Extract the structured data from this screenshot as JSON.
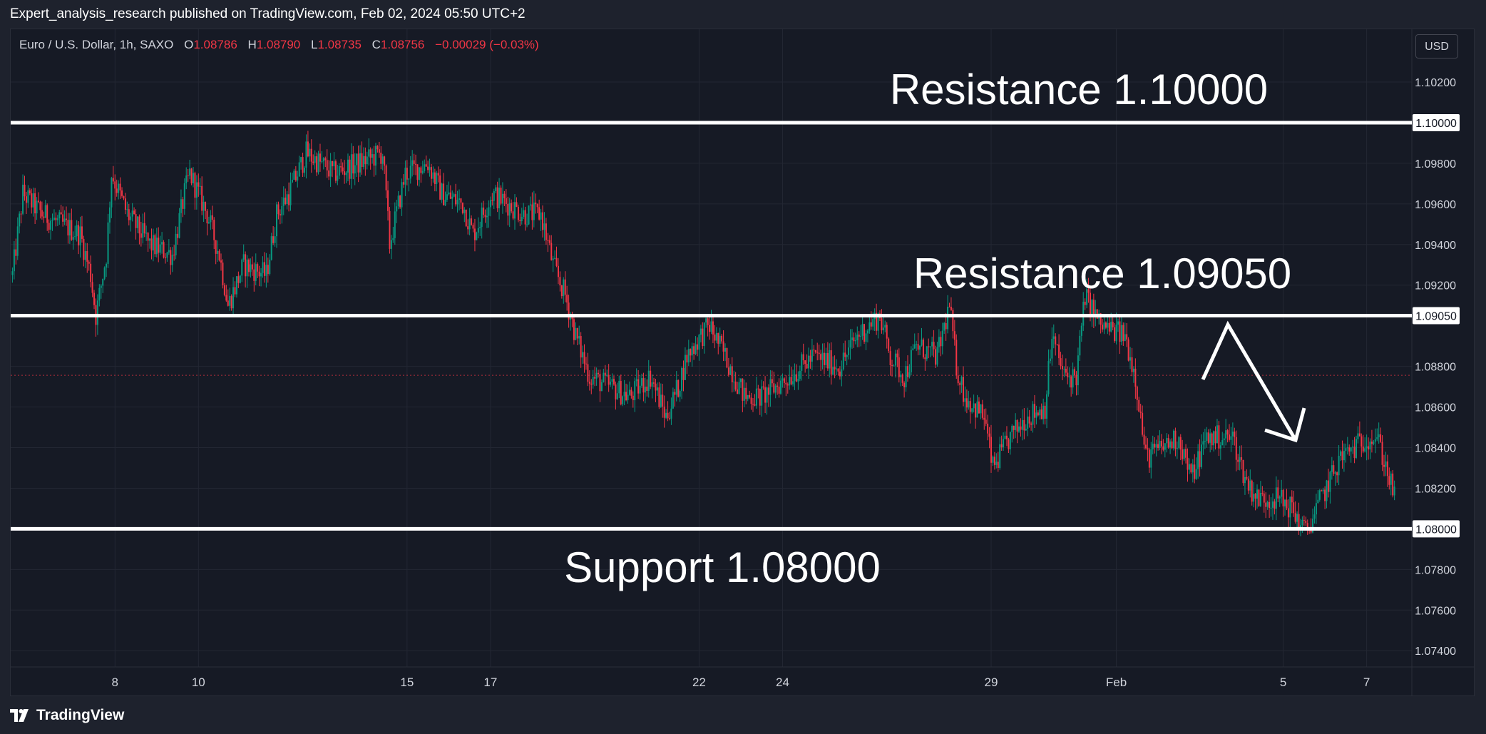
{
  "header": {
    "published_text": "Expert_analysis_research published on TradingView.com, Feb 02, 2024 05:50 UTC+2"
  },
  "legend": {
    "symbol_text": "Euro / U.S. Dollar, 1h, SAXO",
    "open_label": "O",
    "open_value": "1.08786",
    "high_label": "H",
    "high_value": "1.08790",
    "low_label": "L",
    "low_value": "1.08735",
    "close_label": "C",
    "close_value": "1.08756",
    "change_text": "−0.00029 (−0.03%)"
  },
  "currency_button": "USD",
  "footer": {
    "brand": "TradingView",
    "logo_icon": "tradingview-logo-icon"
  },
  "colors": {
    "background": "#161a25",
    "up_candle": "#089981",
    "down_candle": "#f23645",
    "level_line": "#ffffff",
    "axis_text": "#d1d4dc",
    "last_price_line": "#f23645"
  },
  "chart_data": {
    "type": "candlestick",
    "symbol": "EURUSD",
    "timeframe": "1h",
    "ylim": [
      1.0732,
      1.1046
    ],
    "y_ticks": [
      1.102,
      1.098,
      1.096,
      1.094,
      1.092,
      1.088,
      1.086,
      1.084,
      1.082,
      1.078,
      1.076,
      1.074
    ],
    "y_tick_labels": [
      "1.10200",
      "1.09800",
      "1.09600",
      "1.09400",
      "1.09200",
      "1.08800",
      "1.08600",
      "1.08400",
      "1.08200",
      "1.07800",
      "1.07600",
      "1.07400"
    ],
    "x_ticks": [
      {
        "label": "8",
        "date": "2024-01-08"
      },
      {
        "label": "10",
        "date": "2024-01-10"
      },
      {
        "label": "15",
        "date": "2024-01-15"
      },
      {
        "label": "17",
        "date": "2024-01-17"
      },
      {
        "label": "22",
        "date": "2024-01-22"
      },
      {
        "label": "24",
        "date": "2024-01-24"
      },
      {
        "label": "29",
        "date": "2024-01-29"
      },
      {
        "label": "Feb",
        "date": "2024-02-01"
      },
      {
        "label": "5",
        "date": "2024-02-05"
      },
      {
        "label": "7",
        "date": "2024-02-07"
      }
    ],
    "x_range": [
      "2024-01-05 12:00",
      "2024-02-08 02:00"
    ],
    "levels": [
      {
        "label": "Resistance 1.10000",
        "price": 1.1,
        "price_label": "1.10000"
      },
      {
        "label": "Resistance 1.09050",
        "price": 1.0905,
        "price_label": "1.09050"
      },
      {
        "label": "Support 1.08000",
        "price": 1.08,
        "price_label": "1.08000"
      }
    ],
    "last_price": 1.08756,
    "anchors": [
      {
        "date": "2024-01-05 13:00",
        "price": 1.0925
      },
      {
        "date": "2024-01-05 19:00",
        "price": 1.0965
      },
      {
        "date": "2024-01-06 06:00",
        "price": 1.0955
      },
      {
        "date": "2024-01-07 04:00",
        "price": 1.0945
      },
      {
        "date": "2024-01-07 10:00",
        "price": 1.0925
      },
      {
        "date": "2024-01-07 13:00",
        "price": 1.0905
      },
      {
        "date": "2024-01-07 19:00",
        "price": 1.0935
      },
      {
        "date": "2024-01-07 22:00",
        "price": 1.0975
      },
      {
        "date": "2024-01-08 07:00",
        "price": 1.0955
      },
      {
        "date": "2024-01-08 20:00",
        "price": 1.094
      },
      {
        "date": "2024-01-09 09:00",
        "price": 1.0935
      },
      {
        "date": "2024-01-09 16:00",
        "price": 1.0965
      },
      {
        "date": "2024-01-09 19:00",
        "price": 1.0975
      },
      {
        "date": "2024-01-10 05:00",
        "price": 1.0955
      },
      {
        "date": "2024-01-10 12:00",
        "price": 1.0935
      },
      {
        "date": "2024-01-10 17:00",
        "price": 1.091
      },
      {
        "date": "2024-01-11 02:00",
        "price": 1.093
      },
      {
        "date": "2024-01-11 15:00",
        "price": 1.0925
      },
      {
        "date": "2024-01-11 21:00",
        "price": 1.0955
      },
      {
        "date": "2024-01-12 04:00",
        "price": 1.0965
      },
      {
        "date": "2024-01-12 14:00",
        "price": 1.0985
      },
      {
        "date": "2024-01-13 06:00",
        "price": 1.0975
      },
      {
        "date": "2024-01-14 10:00",
        "price": 1.0985
      },
      {
        "date": "2024-01-14 14:00",
        "price": 1.094
      },
      {
        "date": "2024-01-14 23:00",
        "price": 1.0975
      },
      {
        "date": "2024-01-15 12:00",
        "price": 1.098
      },
      {
        "date": "2024-01-15 20:00",
        "price": 1.0965
      },
      {
        "date": "2024-01-16 08:00",
        "price": 1.096
      },
      {
        "date": "2024-01-16 14:00",
        "price": 1.0945
      },
      {
        "date": "2024-01-17 01:00",
        "price": 1.0965
      },
      {
        "date": "2024-01-17 19:00",
        "price": 1.0955
      },
      {
        "date": "2024-01-18 05:00",
        "price": 1.0955
      },
      {
        "date": "2024-01-18 12:00",
        "price": 1.093
      },
      {
        "date": "2024-01-18 19:00",
        "price": 1.0915
      },
      {
        "date": "2024-01-19 01:00",
        "price": 1.0895
      },
      {
        "date": "2024-01-19 09:00",
        "price": 1.0875
      },
      {
        "date": "2024-01-19 21:00",
        "price": 1.087
      },
      {
        "date": "2024-01-20 08:00",
        "price": 1.0865
      },
      {
        "date": "2024-01-20 20:00",
        "price": 1.0875
      },
      {
        "date": "2024-01-21 05:00",
        "price": 1.0855
      },
      {
        "date": "2024-01-21 12:00",
        "price": 1.087
      },
      {
        "date": "2024-01-21 17:00",
        "price": 1.0885
      },
      {
        "date": "2024-01-22 01:00",
        "price": 1.0895
      },
      {
        "date": "2024-01-22 06:00",
        "price": 1.09
      },
      {
        "date": "2024-01-22 15:00",
        "price": 1.0885
      },
      {
        "date": "2024-01-23 02:00",
        "price": 1.0865
      },
      {
        "date": "2024-01-23 12:00",
        "price": 1.0865
      },
      {
        "date": "2024-01-24 04:00",
        "price": 1.0875
      },
      {
        "date": "2024-01-24 18:00",
        "price": 1.0885
      },
      {
        "date": "2024-01-25 09:00",
        "price": 1.088
      },
      {
        "date": "2024-01-25 19:00",
        "price": 1.0895
      },
      {
        "date": "2024-01-26 08:00",
        "price": 1.0905
      },
      {
        "date": "2024-01-26 14:00",
        "price": 1.0885
      },
      {
        "date": "2024-01-26 22:00",
        "price": 1.0875
      },
      {
        "date": "2024-01-27 05:00",
        "price": 1.089
      },
      {
        "date": "2024-01-27 17:00",
        "price": 1.0885
      },
      {
        "date": "2024-01-28 00:00",
        "price": 1.091
      },
      {
        "date": "2024-01-28 04:00",
        "price": 1.088
      },
      {
        "date": "2024-01-28 09:00",
        "price": 1.0865
      },
      {
        "date": "2024-01-28 20:00",
        "price": 1.0855
      },
      {
        "date": "2024-01-29 01:00",
        "price": 1.083
      },
      {
        "date": "2024-01-29 11:00",
        "price": 1.0845
      },
      {
        "date": "2024-01-29 20:00",
        "price": 1.0855
      },
      {
        "date": "2024-01-30 07:00",
        "price": 1.086
      },
      {
        "date": "2024-01-30 11:00",
        "price": 1.0895
      },
      {
        "date": "2024-01-30 18:00",
        "price": 1.0875
      },
      {
        "date": "2024-01-31 01:00",
        "price": 1.0875
      },
      {
        "date": "2024-01-31 06:00",
        "price": 1.0915
      },
      {
        "date": "2024-01-31 15:00",
        "price": 1.09
      },
      {
        "date": "2024-02-01 05:00",
        "price": 1.0895
      },
      {
        "date": "2024-02-01 11:00",
        "price": 1.0875
      },
      {
        "date": "2024-02-01 17:00",
        "price": 1.0835
      },
      {
        "date": "2024-02-02 02:00",
        "price": 1.084
      },
      {
        "date": "2024-02-02 12:00",
        "price": 1.0845
      },
      {
        "date": "2024-02-02 19:00",
        "price": 1.0825
      },
      {
        "date": "2024-02-03 04:00",
        "price": 1.0845
      },
      {
        "date": "2024-02-03 19:00",
        "price": 1.0845
      },
      {
        "date": "2024-02-04 02:00",
        "price": 1.0825
      },
      {
        "date": "2024-02-04 09:00",
        "price": 1.0815
      },
      {
        "date": "2024-02-04 21:00",
        "price": 1.0815
      },
      {
        "date": "2024-02-05 05:00",
        "price": 1.081
      },
      {
        "date": "2024-02-05 13:00",
        "price": 1.0798
      },
      {
        "date": "2024-02-05 22:00",
        "price": 1.0815
      },
      {
        "date": "2024-02-06 09:00",
        "price": 1.0835
      },
      {
        "date": "2024-02-06 17:00",
        "price": 1.084
      },
      {
        "date": "2024-02-07 00:00",
        "price": 1.0845
      },
      {
        "date": "2024-02-07 06:00",
        "price": 1.0845
      },
      {
        "date": "2024-02-07 13:00",
        "price": 1.0825
      },
      {
        "date": "2024-02-07 16:00",
        "price": 1.0815
      }
    ]
  }
}
